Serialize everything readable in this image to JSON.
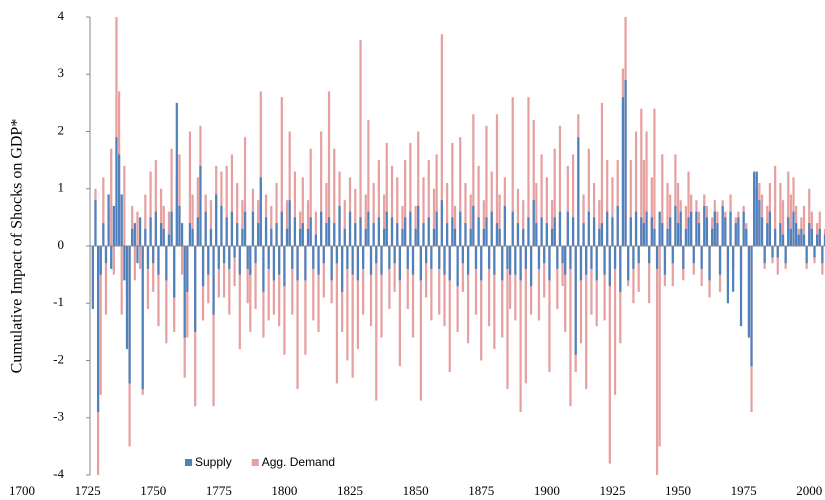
{
  "chart_data": {
    "type": "bar",
    "y_label": "Cumulative Impact of  Shocks on GDP*",
    "xlim": [
      1700,
      2006
    ],
    "xticks": [
      1700,
      1725,
      1750,
      1775,
      1800,
      1825,
      1850,
      1875,
      1900,
      1925,
      1950,
      1975,
      2000
    ],
    "ylim": [
      -4,
      4
    ],
    "yticks": [
      -4,
      -3,
      -2,
      -1,
      0,
      1,
      2,
      3,
      4
    ],
    "grid": false,
    "legend": "bottom-left",
    "x": [
      1727,
      1728,
      1729,
      1730,
      1731,
      1732,
      1733,
      1734,
      1735,
      1736,
      1737,
      1738,
      1739,
      1740,
      1741,
      1742,
      1743,
      1744,
      1745,
      1746,
      1747,
      1748,
      1749,
      1750,
      1751,
      1752,
      1753,
      1754,
      1755,
      1756,
      1757,
      1758,
      1759,
      1760,
      1761,
      1762,
      1763,
      1764,
      1765,
      1766,
      1767,
      1768,
      1769,
      1770,
      1771,
      1772,
      1773,
      1774,
      1775,
      1776,
      1777,
      1778,
      1779,
      1780,
      1781,
      1782,
      1783,
      1784,
      1785,
      1786,
      1787,
      1788,
      1789,
      1790,
      1791,
      1792,
      1793,
      1794,
      1795,
      1796,
      1797,
      1798,
      1799,
      1800,
      1801,
      1802,
      1803,
      1804,
      1805,
      1806,
      1807,
      1808,
      1809,
      1810,
      1811,
      1812,
      1813,
      1814,
      1815,
      1816,
      1817,
      1818,
      1819,
      1820,
      1821,
      1822,
      1823,
      1824,
      1825,
      1826,
      1827,
      1828,
      1829,
      1830,
      1831,
      1832,
      1833,
      1834,
      1835,
      1836,
      1837,
      1838,
      1839,
      1840,
      1841,
      1842,
      1843,
      1844,
      1845,
      1846,
      1847,
      1848,
      1849,
      1850,
      1851,
      1852,
      1853,
      1854,
      1855,
      1856,
      1857,
      1858,
      1859,
      1860,
      1861,
      1862,
      1863,
      1864,
      1865,
      1866,
      1867,
      1868,
      1869,
      1870,
      1871,
      1872,
      1873,
      1874,
      1875,
      1876,
      1877,
      1878,
      1879,
      1880,
      1881,
      1882,
      1883,
      1884,
      1885,
      1886,
      1887,
      1888,
      1889,
      1890,
      1891,
      1892,
      1893,
      1894,
      1895,
      1896,
      1897,
      1898,
      1899,
      1900,
      1901,
      1902,
      1903,
      1904,
      1905,
      1906,
      1907,
      1908,
      1909,
      1910,
      1911,
      1912,
      1913,
      1914,
      1915,
      1916,
      1917,
      1918,
      1919,
      1920,
      1921,
      1922,
      1923,
      1924,
      1925,
      1926,
      1927,
      1928,
      1929,
      1930,
      1931,
      1932,
      1933,
      1934,
      1935,
      1936,
      1937,
      1938,
      1939,
      1940,
      1941,
      1942,
      1943,
      1944,
      1945,
      1946,
      1947,
      1948,
      1949,
      1950,
      1951,
      1952,
      1953,
      1954,
      1955,
      1956,
      1957,
      1958,
      1959,
      1960,
      1961,
      1962,
      1963,
      1964,
      1965,
      1966,
      1967,
      1968,
      1969,
      1970,
      1971,
      1972,
      1973,
      1974,
      1975,
      1976,
      1977,
      1978,
      1979,
      1980,
      1981,
      1982,
      1983,
      1984,
      1985,
      1986,
      1987,
      1988,
      1989,
      1990,
      1991,
      1992,
      1993,
      1994,
      1995,
      1996,
      1997,
      1998,
      1999,
      2000,
      2001,
      2002,
      2003,
      2004,
      2005,
      2006
    ],
    "series": [
      {
        "name": "Agg. Demand",
        "color": "#e6a0a0",
        "values": [
          -1.0,
          1.0,
          -4.0,
          -2.6,
          1.2,
          -1.2,
          0.6,
          1.7,
          -0.5,
          4.0,
          2.7,
          -1.2,
          1.4,
          -0.8,
          -3.5,
          0.7,
          -0.6,
          0.6,
          -0.4,
          -2.6,
          0.9,
          -1.1,
          1.3,
          -0.8,
          1.5,
          -1.4,
          1.0,
          0.7,
          -1.7,
          0.6,
          1.7,
          -1.5,
          1.2,
          1.6,
          -0.5,
          -2.3,
          -1.6,
          2.0,
          0.9,
          -2.8,
          1.2,
          2.1,
          -1.3,
          0.9,
          -1.0,
          0.8,
          -2.8,
          1.4,
          -0.9,
          1.3,
          -0.9,
          1.4,
          -1.2,
          1.6,
          -0.7,
          1.1,
          -1.8,
          0.8,
          1.9,
          -1.0,
          -1.5,
          1.0,
          -1.1,
          0.8,
          2.7,
          -1.6,
          0.9,
          -1.3,
          0.7,
          -1.2,
          1.1,
          -1.4,
          2.6,
          -1.9,
          0.8,
          2.0,
          -1.2,
          1.3,
          -2.5,
          0.6,
          1.2,
          -1.9,
          0.8,
          1.7,
          -1.3,
          0.6,
          -1.5,
          2.0,
          -0.9,
          1.1,
          2.7,
          -1.0,
          1.7,
          -2.4,
          1.3,
          -1.5,
          0.8,
          -2.0,
          1.2,
          -2.3,
          1.0,
          -1.8,
          3.6,
          -1.2,
          0.9,
          2.2,
          -1.4,
          1.1,
          -2.7,
          1.5,
          -1.6,
          0.9,
          1.8,
          -1.1,
          1.4,
          -0.8,
          1.2,
          -2.1,
          0.7,
          1.5,
          -1.1,
          1.8,
          -1.6,
          0.7,
          2.0,
          -2.7,
          1.2,
          -0.9,
          1.5,
          -1.3,
          1.0,
          1.6,
          -1.2,
          3.7,
          -1.4,
          1.1,
          -2.2,
          1.8,
          0.7,
          -1.5,
          1.9,
          -0.8,
          1.1,
          -1.7,
          0.9,
          2.3,
          -1.2,
          1.4,
          -2.0,
          0.8,
          2.1,
          -1.4,
          1.3,
          -1.8,
          2.3,
          0.9,
          -1.6,
          1.2,
          -2.5,
          -1.1,
          2.6,
          -1.3,
          1.0,
          -2.9,
          0.8,
          -2.4,
          2.6,
          -1.2,
          2.2,
          1.1,
          -1.3,
          1.6,
          -0.9,
          1.2,
          -2.2,
          0.8,
          1.7,
          -1.1,
          2.1,
          -0.7,
          -1.5,
          1.4,
          -2.8,
          1.6,
          -2.2,
          2.3,
          -1.7,
          0.9,
          -2.5,
          1.7,
          -1.2,
          1.1,
          -1.4,
          0.8,
          2.5,
          -1.3,
          1.5,
          -3.8,
          1.2,
          -2.6,
          1.5,
          -1.7,
          3.1,
          4.0,
          -0.7,
          1.5,
          -1.0,
          2.0,
          -0.8,
          2.4,
          1.5,
          2.0,
          -1.0,
          1.2,
          2.4,
          -4.0,
          -3.5,
          1.6,
          -0.7,
          1.1,
          0.9,
          -0.7,
          1.6,
          1.1,
          0.8,
          -0.6,
          0.7,
          1.3,
          0.9,
          -0.5,
          0.8,
          0.6,
          -0.7,
          0.9,
          0.7,
          -0.9,
          0.5,
          0.8,
          0.6,
          -0.8,
          0.8,
          0.6,
          -0.5,
          0.9,
          -0.4,
          0.5,
          0.6,
          -0.6,
          0.7,
          0.4,
          -1.4,
          -2.9,
          1.2,
          1.0,
          1.1,
          0.9,
          -0.4,
          0.7,
          1.1,
          -0.3,
          1.4,
          -0.5,
          1.1,
          0.8,
          -0.4,
          1.3,
          0.9,
          1.2,
          0.7,
          0.3,
          0.5,
          0.7,
          -0.4,
          1.0,
          0.6,
          -0.3,
          0.4,
          0.6,
          -0.5,
          0.3
        ]
      },
      {
        "name": "Supply",
        "color": "#4f81bd",
        "values": [
          -1.1,
          0.8,
          -2.9,
          -0.5,
          0.4,
          -0.3,
          0.9,
          -0.4,
          0.7,
          1.9,
          1.6,
          0.9,
          -0.6,
          -1.8,
          -2.4,
          0.3,
          0.4,
          -0.3,
          0.5,
          -2.5,
          0.3,
          -0.4,
          0.5,
          -0.3,
          0.6,
          -0.5,
          0.4,
          0.3,
          -0.6,
          0.2,
          0.6,
          -0.9,
          2.5,
          0.7,
          0.4,
          -1.6,
          -0.8,
          0.4,
          0.3,
          -1.5,
          0.5,
          1.4,
          -0.7,
          0.6,
          -0.5,
          0.3,
          -1.2,
          0.9,
          -0.4,
          0.7,
          -0.3,
          0.5,
          -0.4,
          0.6,
          -0.2,
          0.4,
          -0.5,
          0.3,
          0.6,
          -0.4,
          -0.5,
          0.6,
          -0.3,
          0.4,
          1.2,
          -0.8,
          0.5,
          -0.4,
          0.3,
          -0.6,
          0.4,
          -0.5,
          0.6,
          -0.7,
          0.3,
          0.8,
          -0.4,
          0.5,
          -0.6,
          0.3,
          0.4,
          -0.6,
          0.3,
          0.5,
          -0.4,
          0.2,
          -0.5,
          0.6,
          -0.3,
          0.4,
          0.5,
          -0.6,
          0.4,
          -0.3,
          0.7,
          -0.8,
          0.3,
          -0.4,
          0.6,
          -0.5,
          0.4,
          -0.6,
          0.5,
          -0.4,
          0.3,
          0.6,
          -0.5,
          0.4,
          -0.3,
          0.5,
          -0.5,
          0.3,
          0.6,
          -0.4,
          0.5,
          -0.3,
          0.4,
          -0.6,
          0.3,
          0.5,
          -0.4,
          0.6,
          -0.5,
          0.3,
          0.7,
          -0.6,
          0.4,
          -0.3,
          0.5,
          -0.4,
          0.3,
          0.6,
          -0.4,
          0.8,
          -0.5,
          0.4,
          -0.6,
          0.5,
          0.3,
          -0.7,
          0.6,
          -0.3,
          0.4,
          -0.5,
          0.3,
          0.7,
          -0.4,
          0.5,
          -0.6,
          0.3,
          0.5,
          -0.4,
          0.6,
          -0.5,
          0.4,
          0.3,
          -0.6,
          0.7,
          -0.4,
          -0.5,
          0.6,
          -0.5,
          0.4,
          -0.6,
          0.3,
          -0.4,
          0.5,
          -0.7,
          0.8,
          0.4,
          -0.4,
          0.5,
          -0.3,
          0.4,
          -0.6,
          0.3,
          0.5,
          -0.4,
          0.6,
          -0.3,
          -0.5,
          0.6,
          -0.4,
          0.5,
          -1.9,
          1.9,
          -0.6,
          0.4,
          -0.5,
          0.6,
          -0.4,
          0.5,
          -0.6,
          0.3,
          0.4,
          -0.5,
          0.6,
          -0.7,
          0.5,
          -0.4,
          0.7,
          -0.8,
          2.6,
          2.9,
          -0.6,
          0.5,
          -0.4,
          0.6,
          -0.3,
          0.5,
          0.4,
          0.6,
          -0.3,
          0.5,
          0.3,
          -0.4,
          0.6,
          0.4,
          -0.5,
          0.3,
          0.5,
          -0.3,
          0.7,
          0.4,
          0.6,
          -0.4,
          0.3,
          0.5,
          0.6,
          -0.3,
          0.6,
          0.4,
          -0.4,
          0.7,
          0.5,
          -0.6,
          0.3,
          0.6,
          0.4,
          -0.5,
          0.7,
          0.5,
          -1.0,
          0.6,
          -0.8,
          0.4,
          0.5,
          -1.4,
          0.6,
          0.3,
          -1.6,
          -2.1,
          1.3,
          1.3,
          0.8,
          0.5,
          -0.3,
          0.4,
          0.6,
          -0.2,
          0.3,
          -0.2,
          0.4,
          0.2,
          -0.3,
          0.5,
          0.3,
          0.6,
          0.4,
          0.2,
          0.3,
          0.2,
          -0.3,
          0.4,
          0.3,
          -0.2,
          0.2,
          0.3,
          -0.3,
          0.2
        ]
      }
    ]
  }
}
